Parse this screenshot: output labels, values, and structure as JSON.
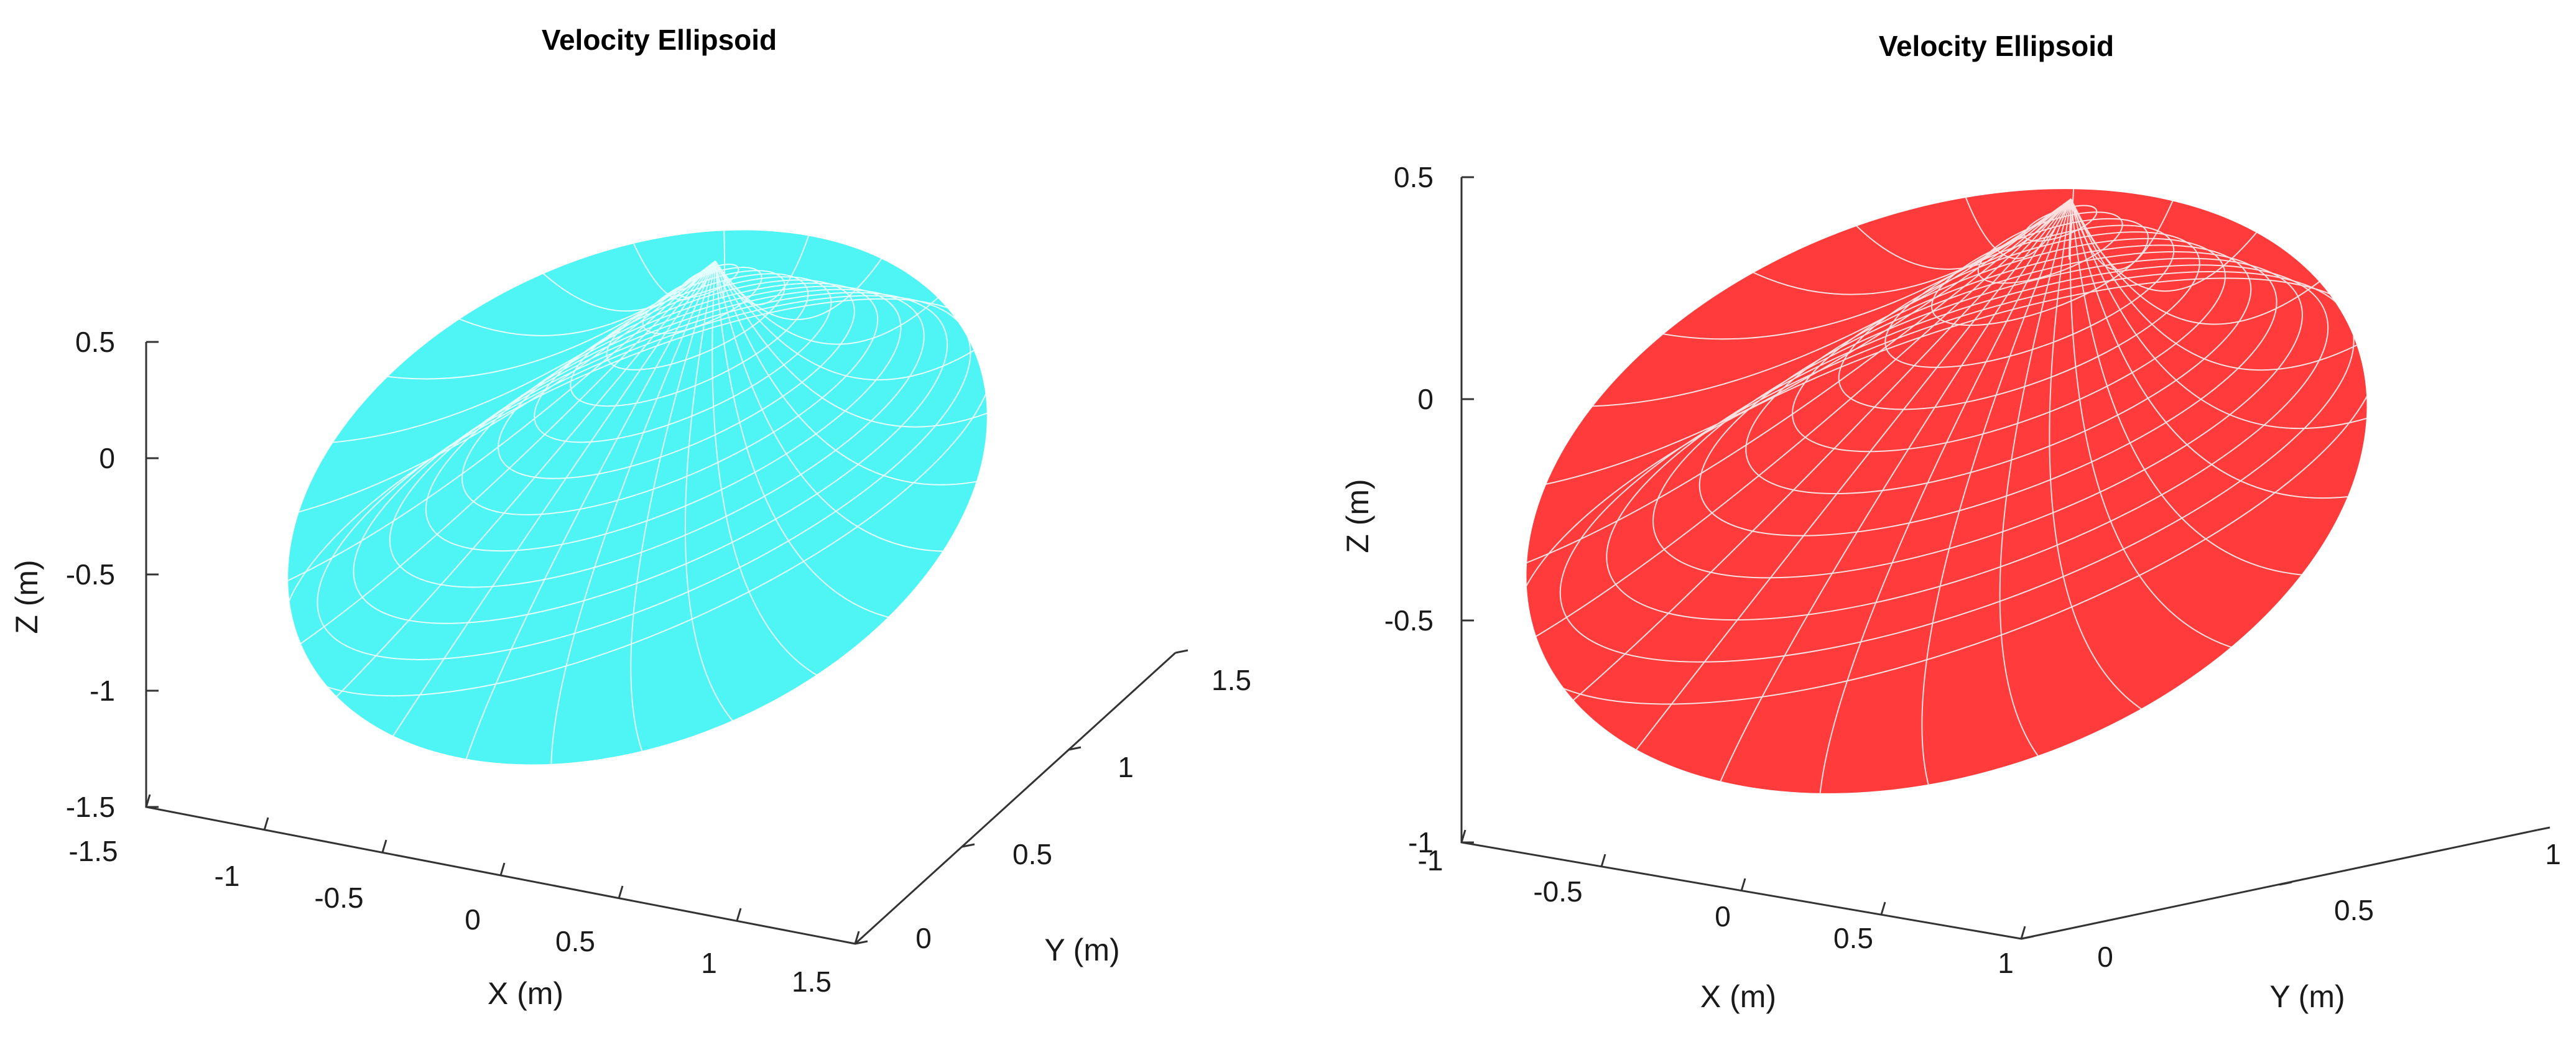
{
  "chart_data": [
    {
      "type": "surface",
      "title": "Velocity Ellipsoid",
      "xlabel": "X (m)",
      "ylabel": "Y (m)",
      "zlabel": "Z (m)",
      "surface_color": "#4ff5f5",
      "mesh_color": "#ffffff",
      "xlim": [
        -1.5,
        1.5
      ],
      "ylim": [
        0,
        1.5
      ],
      "zlim": [
        -1.5,
        0.5
      ],
      "x_ticks": [
        "-1.5",
        "-1",
        "-0.5",
        "0",
        "0.5",
        "1",
        "1.5"
      ],
      "y_ticks": [
        "0",
        "0.5",
        "1",
        "1.5"
      ],
      "z_ticks": [
        "0.5",
        "0",
        "-0.5",
        "-1",
        "-1.5"
      ]
    },
    {
      "type": "surface",
      "title": "Velocity Ellipsoid",
      "xlabel": "X (m)",
      "ylabel": "Y (m)",
      "zlabel": "Z (m)",
      "surface_color": "#ff3b3b",
      "mesh_color": "#ffffff",
      "xlim": [
        -1,
        1
      ],
      "ylim": [
        0,
        1
      ],
      "zlim": [
        -1,
        0.5
      ],
      "x_ticks": [
        "-1",
        "-0.5",
        "0",
        "0.5",
        "1"
      ],
      "y_ticks": [
        "0",
        "0.5",
        "1"
      ],
      "z_ticks": [
        "0.5",
        "0",
        "-0.5",
        "-1"
      ]
    }
  ]
}
